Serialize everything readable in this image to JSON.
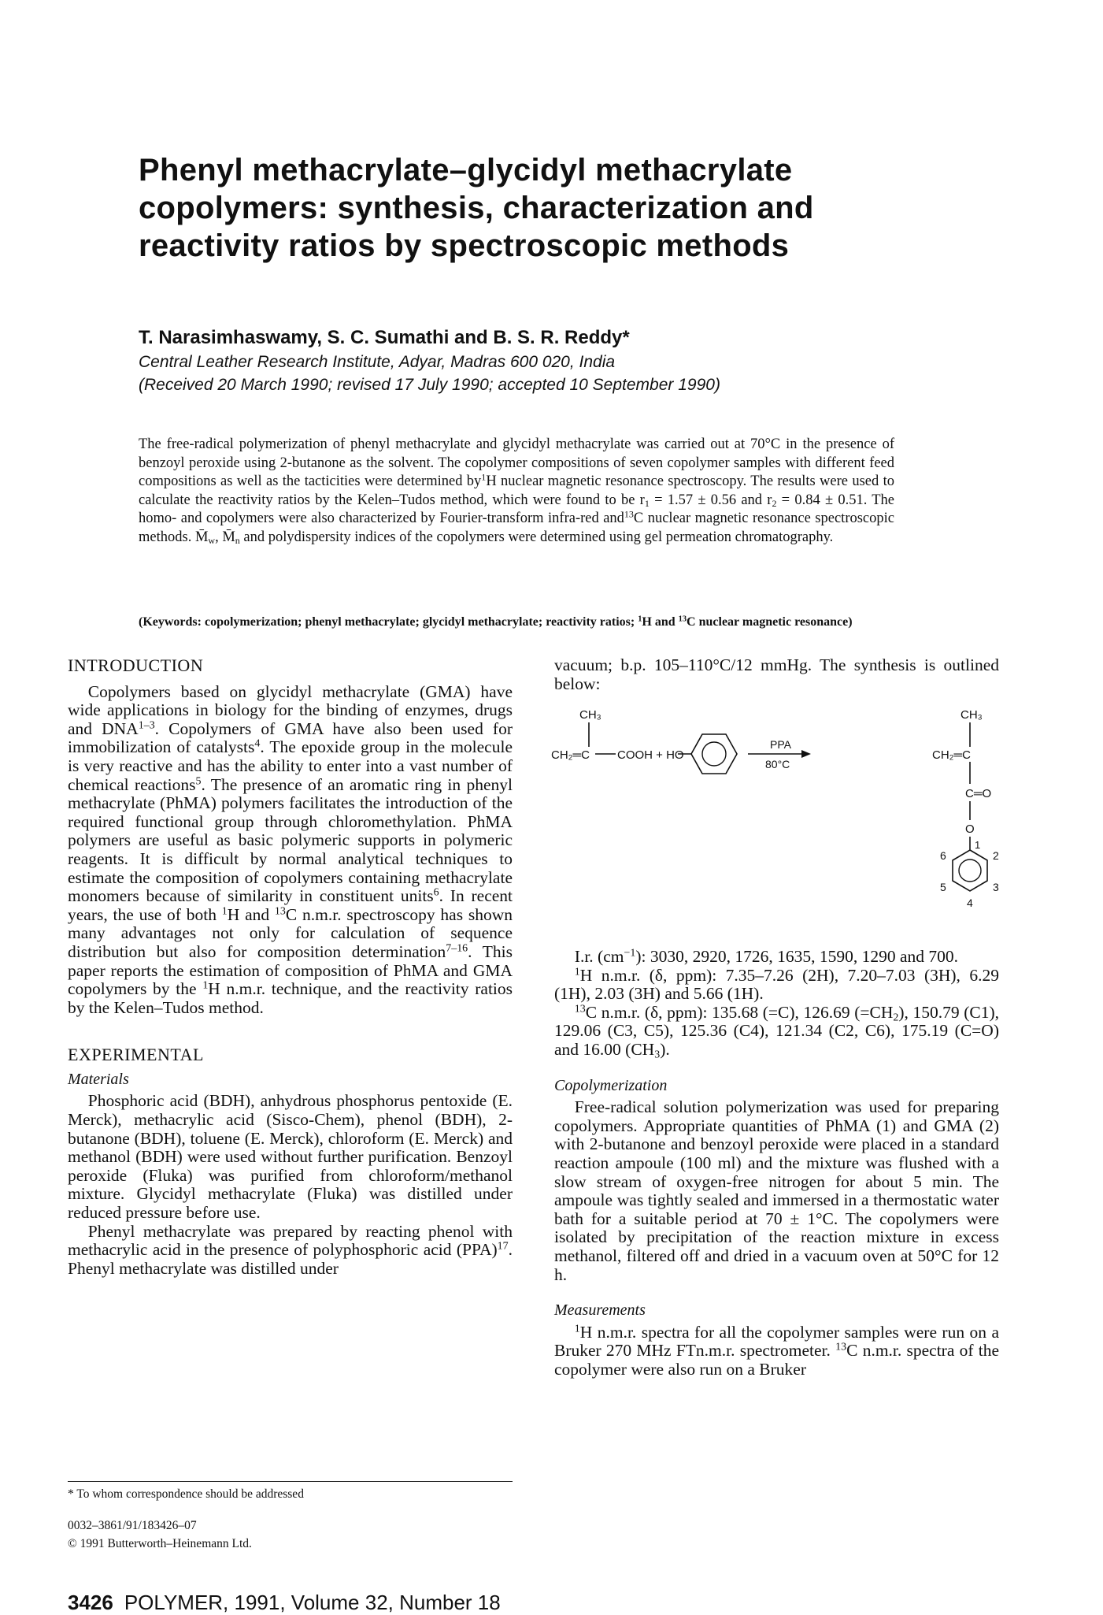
{
  "title": {
    "line1": "Phenyl methacrylate–glycidyl methacrylate",
    "line2": "copolymers: synthesis, characterization and",
    "line3": "reactivity ratios by spectroscopic methods"
  },
  "authors": "T. Narasimhaswamy, S. C. Sumathi and B. S. R. Reddy*",
  "affiliation": "Central Leather Research Institute, Adyar, Madras 600 020, India",
  "received": "(Received 20 March 1990; revised 17 July 1990; accepted 10 September 1990)",
  "abstract": {
    "p1": "The free-radical polymerization of phenyl methacrylate and glycidyl methacrylate was carried out at 70°C in the presence of benzoyl peroxide using 2-butanone as the solvent. The copolymer compositions of seven copolymer samples with different feed compositions as well as the tacticities were determined by",
    "p1_sup": "1",
    "p2": "H nuclear magnetic resonance spectroscopy. The results were used to calculate the reactivity ratios by the Kelen–Tudos method, which were found to be r",
    "p2_sub": "1",
    "p3": " = 1.57 ± 0.56 and r",
    "p3_sub": "2",
    "p4": " = 0.84 ± 0.51. The homo- and copolymers were also characterized by Fourier-transform infra-red and",
    "p4_sup": "13",
    "p5": "C nuclear magnetic resonance spectroscopic methods. M̄",
    "p5_sub": "w",
    "p6": ", M̄",
    "p6_sub": "n",
    "p7": " and polydispersity indices of the copolymers were determined using gel permeation chromatography."
  },
  "keywords": {
    "a": "(Keywords: copolymerization; phenyl methacrylate; glycidyl methacrylate; reactivity ratios;",
    "sup1": "1",
    "b": "H and",
    "sup2": "13",
    "c": "C nuclear magnetic resonance)"
  },
  "intro": {
    "heading": "INTRODUCTION",
    "t1": "Copolymers based on glycidyl methacrylate (GMA) have wide applications in biology for the binding of enzymes, drugs and DNA",
    "r1": "1–3",
    "t2": ". Copolymers of GMA have also been used for immobilization of catalysts",
    "r2": "4",
    "t3": ". The epoxide group in the molecule is very reactive and has the ability to enter into a vast number of chemical reactions",
    "r3": "5",
    "t4": ". The presence of an aromatic ring in phenyl methacrylate (PhMA) polymers facilitates the introduction of the required functional group through chloromethylation. PhMA polymers are useful as basic polymeric supports in polymeric reagents. It is difficult by normal analytical techniques to estimate the composition of copolymers containing methacrylate monomers because of similarity in constituent units",
    "r4": "6",
    "t5": ". In recent years, the use of both",
    "s1": "1",
    "t6": "H and",
    "s2": "13",
    "t7": "C n.m.r. spectroscopy has shown many advantages not only for calculation of sequence distribution but also for composition determination",
    "r5": "7–16",
    "t8": ". This paper reports the estimation of composition of PhMA and GMA copolymers by the",
    "s3": "1",
    "t9": "H n.m.r. technique, and the reactivity ratios by the Kelen–Tudos method."
  },
  "experimental": {
    "heading": "EXPERIMENTAL",
    "materials_heading": "Materials",
    "materials_p1": "Phosphoric acid (BDH), anhydrous phosphorus pentoxide (E. Merck), methacrylic acid (Sisco-Chem), phenol (BDH), 2-butanone (BDH), toluene (E. Merck), chloroform (E. Merck) and methanol (BDH) were used without further purification. Benzoyl peroxide (Fluka) was purified from chloroform/methanol mixture. Glycidyl methacrylate (Fluka) was distilled under reduced pressure before use.",
    "materials_p2a": "Phenyl methacrylate was prepared by reacting phenol with methacrylic acid in the presence of polyphosphoric acid (PPA)",
    "materials_p2_ref": "17",
    "materials_p2b": ". Phenyl methacrylate was distilled under"
  },
  "right": {
    "cont": "vacuum; b.p. 105–110°C/12 mmHg. The synthesis is outlined below:",
    "ir": "I.r. (cm",
    "ir_sup": "−1",
    "ir_rest": "): 3030, 2920, 1726, 1635, 1590, 1290 and 700.",
    "hnmr_sup": "1",
    "hnmr": "H n.m.r. (δ, ppm): 7.35–7.26 (2H), 7.20–7.03 (3H), 6.29 (1H), 2.03 (3H) and 5.66 (1H).",
    "cnmr_sup": "13",
    "cnmr_a": "C n.m.r. (δ, ppm): 135.68 (=C), 126.69 (=CH",
    "cnmr_sub": "2",
    "cnmr_b": "), 150.79 (C1), 129.06 (C3, C5), 125.36 (C4), 121.34 (C2, C6), 175.19 (C=O) and 16.00 (CH",
    "cnmr_sub2": "3",
    "cnmr_c": ").",
    "copoly_heading": "Copolymerization",
    "copoly_p": "Free-radical solution polymerization was used for preparing copolymers. Appropriate quantities of PhMA (1) and GMA (2) with 2-butanone and benzoyl peroxide were placed in a standard reaction ampoule (100 ml) and the mixture was flushed with a slow stream of oxygen-free nitrogen for about 5 min. The ampoule was tightly sealed and immersed in a thermostatic water bath for a suitable period at 70 ± 1°C. The copolymers were isolated by precipitation of the reaction mixture in excess methanol, filtered off and dried in a vacuum oven at 50°C for 12 h.",
    "meas_heading": "Measurements",
    "meas_sup1": "1",
    "meas_a": "H n.m.r. spectra for all the copolymer samples were run on a Bruker 270 MHz FTn.m.r. spectrometer.",
    "meas_sup2": "13",
    "meas_b": "C n.m.r. spectra of the copolymer were also run on a Bruker"
  },
  "scheme": {
    "ch3_left": "CH₃",
    "ch2c_left": "CH₂═C",
    "cooh": "COOH + HO",
    "ppa": "PPA",
    "temp": "80°C",
    "ch3_right": "CH₃",
    "ch2c_right": "CH₂═C",
    "co": "C═O",
    "o": "O",
    "n1": "1",
    "n2": "2",
    "n3": "3",
    "n4": "4",
    "n5": "5",
    "n6": "6"
  },
  "footnotes": {
    "corr": "* To whom correspondence should be addressed",
    "code": "0032–3861/91/183426–07",
    "copyright": "© 1991 Butterworth–Heinemann Ltd."
  },
  "footer": {
    "page": "3426",
    "journal": "POLYMER, 1991, Volume 32, Number 18"
  }
}
